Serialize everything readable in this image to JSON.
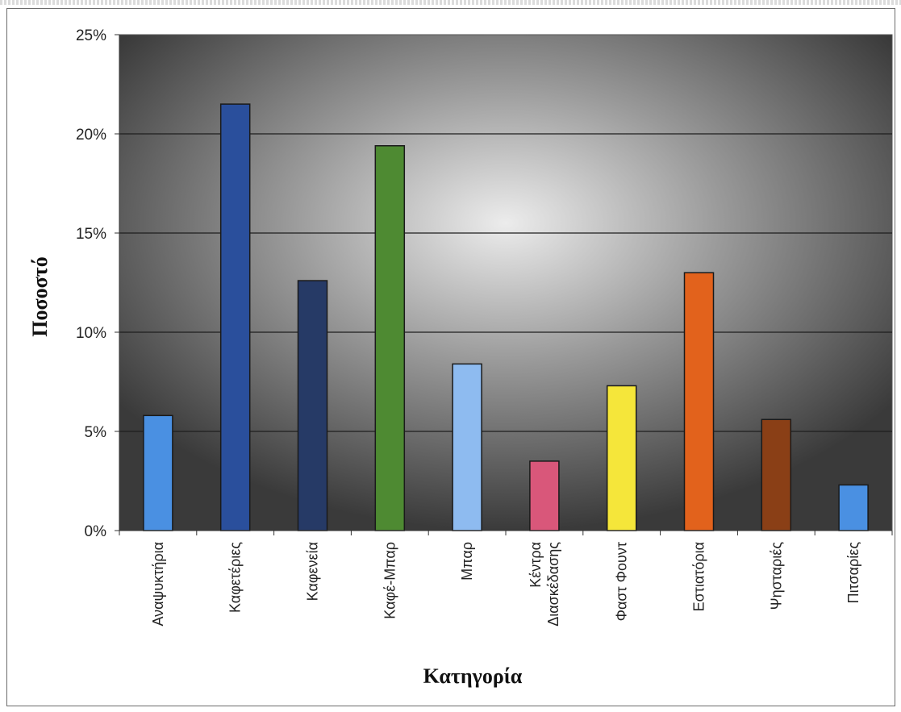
{
  "chart_data": {
    "type": "bar",
    "xlabel": "Κατηγορία",
    "ylabel": "Ποσοστό",
    "ylim": [
      0,
      25
    ],
    "yticks": [
      "0%",
      "5%",
      "10%",
      "15%",
      "20%",
      "25%"
    ],
    "grid": true,
    "categories": [
      [
        "Αναψυκτήρια"
      ],
      [
        "Καφετέριες"
      ],
      [
        "Καφενεία"
      ],
      [
        "Καφέ-Μπαρ"
      ],
      [
        "Μπαρ"
      ],
      [
        "Κέντρα",
        "Διασκέδασης"
      ],
      [
        "Φαστ Φουντ"
      ],
      [
        "Εστιατόρια"
      ],
      [
        "Ψησταριές"
      ],
      [
        "Πιτσαρίες"
      ]
    ],
    "values": [
      5.8,
      21.5,
      12.6,
      19.4,
      8.4,
      3.5,
      7.3,
      13.0,
      5.6,
      2.3
    ],
    "colors": [
      "#4a90e2",
      "#2a4f9c",
      "#263a66",
      "#4e8a32",
      "#8ebbf0",
      "#d9577a",
      "#f5e63a",
      "#e2621c",
      "#8a3f16",
      "#4a90e2"
    ]
  }
}
